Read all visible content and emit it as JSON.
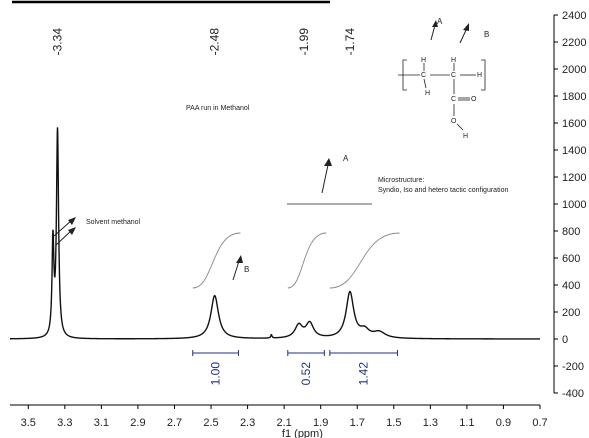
{
  "chart_data": {
    "type": "line",
    "title": "",
    "xlabel": "f1 (ppm)",
    "ylabel": "",
    "xlim": [
      3.6,
      0.7
    ],
    "ylim": [
      -400,
      2400
    ],
    "x_ticks": [
      "3.5",
      "3.3",
      "3.1",
      "2.9",
      "2.7",
      "2.5",
      "2.3",
      "2.1",
      "1.9",
      "1.7",
      "1.5",
      "1.3",
      "1.1",
      "0.9",
      "0.7"
    ],
    "y_ticks": [
      "2400",
      "2200",
      "2000",
      "1800",
      "1600",
      "1400",
      "1200",
      "1000",
      "800",
      "600",
      "400",
      "200",
      "0",
      "-200",
      "-400"
    ],
    "peak_labels": [
      {
        "ppm": 3.34,
        "text": "-3.34"
      },
      {
        "ppm": 2.48,
        "text": "-2.48"
      },
      {
        "ppm": 1.99,
        "text": "-1.99"
      },
      {
        "ppm": 1.74,
        "text": "-1.74"
      }
    ],
    "integrals": [
      {
        "from": 2.6,
        "to": 2.35,
        "value": "1.00"
      },
      {
        "from": 2.08,
        "to": 1.88,
        "value": "0.52"
      },
      {
        "from": 1.85,
        "to": 1.48,
        "value": "1.42"
      }
    ],
    "peaks": [
      {
        "ppm": 3.365,
        "height": 700,
        "width": 0.006
      },
      {
        "ppm": 3.34,
        "height": 1530,
        "width": 0.007
      },
      {
        "ppm": 2.48,
        "height": 320,
        "width": 0.025
      },
      {
        "ppm": 2.17,
        "height": 25,
        "width": 0.004
      },
      {
        "ppm": 2.02,
        "height": 95,
        "width": 0.025
      },
      {
        "ppm": 1.96,
        "height": 110,
        "width": 0.025
      },
      {
        "ppm": 1.74,
        "height": 340,
        "width": 0.025
      },
      {
        "ppm": 1.66,
        "height": 55,
        "width": 0.03
      },
      {
        "ppm": 1.58,
        "height": 45,
        "width": 0.04
      }
    ],
    "annotations": {
      "sample": "PAA run in Methanol",
      "solvent": "Solvent methanol",
      "microstructure_line1": "Microstructure:",
      "microstructure_line2": "Syndio, Iso and hetero tactic configuration",
      "label_a_structure": "A",
      "label_b_structure": "B",
      "label_a_mid": "A",
      "label_b_peak": "B"
    },
    "structure_atoms": {
      "c1": "C",
      "c2": "C",
      "h_top1": "H",
      "h_top2": "H",
      "h_bottom1": "H",
      "h_right": "H",
      "carbonyl_c": "C",
      "carbonyl_o": "O",
      "hydroxyl_o": "O",
      "hydroxyl_h": "H"
    },
    "line_color": "#111111",
    "integral_color": "#1f2f8a"
  }
}
